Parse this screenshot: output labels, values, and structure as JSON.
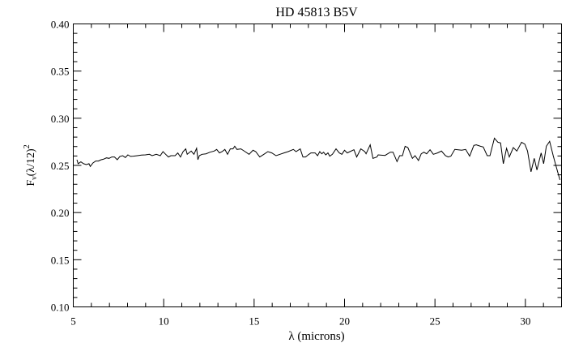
{
  "chart_data": {
    "type": "line",
    "title": "HD 45813 B5V",
    "xlabel": "λ (microns)",
    "ylabel": {
      "base": "F",
      "sub": "ν",
      "mid": "(λ/12)",
      "sup": "2"
    },
    "xlim": [
      5,
      32
    ],
    "ylim": [
      0.1,
      0.4
    ],
    "xticks": [
      5,
      10,
      15,
      20,
      25,
      30
    ],
    "xtick_labels": [
      "5",
      "10",
      "15",
      "20",
      "25",
      "30"
    ],
    "yticks": [
      0.1,
      0.15,
      0.2,
      0.25,
      0.3,
      0.35,
      0.4
    ],
    "ytick_labels": [
      "0.10",
      "0.15",
      "0.20",
      "0.25",
      "0.30",
      "0.35",
      "0.40"
    ],
    "x_minor_step": 1,
    "y_minor_step": 0.01,
    "grid": false,
    "line_color": "#000000",
    "series": [
      {
        "x": [
          5.2,
          5.27,
          5.42,
          5.57,
          5.72,
          5.87,
          5.94,
          6.09,
          6.24,
          6.39,
          6.54,
          6.68,
          6.83,
          6.98,
          7.13,
          7.28,
          7.43,
          7.58,
          7.73,
          7.88,
          8.02,
          8.17,
          8.32,
          8.54,
          8.77,
          8.99,
          9.21,
          9.36,
          9.59,
          9.81,
          9.96,
          10.11,
          10.26,
          10.4,
          10.63,
          10.78,
          10.93,
          11.07,
          11.22,
          11.3,
          11.52,
          11.67,
          11.82,
          11.89,
          11.97,
          12.12,
          12.34,
          12.56,
          12.79,
          12.93,
          13.08,
          13.23,
          13.38,
          13.53,
          13.68,
          13.83,
          13.93,
          14.05,
          14.27,
          14.5,
          14.72,
          14.94,
          15.09,
          15.31,
          15.54,
          15.76,
          15.98,
          16.21,
          16.43,
          16.65,
          16.88,
          17.17,
          17.32,
          17.55,
          17.7,
          17.84,
          17.99,
          18.14,
          18.37,
          18.51,
          18.63,
          18.74,
          18.84,
          18.96,
          19.08,
          19.18,
          19.33,
          19.53,
          19.71,
          19.85,
          20.0,
          20.15,
          20.3,
          20.52,
          20.67,
          20.9,
          21.12,
          21.19,
          21.42,
          21.57,
          21.79,
          21.86,
          22.24,
          22.53,
          22.68,
          22.9,
          23.05,
          23.2,
          23.35,
          23.5,
          23.75,
          23.9,
          24.09,
          24.24,
          24.39,
          24.54,
          24.73,
          24.91,
          25.14,
          25.36,
          25.58,
          25.73,
          25.88,
          26.1,
          26.48,
          26.7,
          26.92,
          27.15,
          27.29,
          27.52,
          27.67,
          27.89,
          28.04,
          28.29,
          28.48,
          28.63,
          28.78,
          28.96,
          29.11,
          29.33,
          29.53,
          29.79,
          29.97,
          30.12,
          30.31,
          30.49,
          30.64,
          30.87,
          31.01,
          31.16,
          31.34,
          31.54,
          31.68,
          31.91
        ],
        "y": [
          0.256,
          0.2518,
          0.2538,
          0.2518,
          0.2509,
          0.2518,
          0.2489,
          0.2526,
          0.2546,
          0.2546,
          0.256,
          0.2566,
          0.258,
          0.2575,
          0.2589,
          0.2589,
          0.256,
          0.2595,
          0.2603,
          0.2583,
          0.2612,
          0.2595,
          0.2598,
          0.2603,
          0.2609,
          0.2612,
          0.2618,
          0.2603,
          0.2618,
          0.2603,
          0.2646,
          0.2618,
          0.2589,
          0.2603,
          0.2603,
          0.2632,
          0.2589,
          0.2646,
          0.2675,
          0.2618,
          0.2652,
          0.2618,
          0.2681,
          0.256,
          0.2603,
          0.2618,
          0.2623,
          0.264,
          0.2652,
          0.2669,
          0.2632,
          0.2646,
          0.2669,
          0.2618,
          0.2675,
          0.2675,
          0.2703,
          0.2669,
          0.2675,
          0.2646,
          0.2618,
          0.2661,
          0.2646,
          0.2589,
          0.2618,
          0.2646,
          0.2632,
          0.2603,
          0.2618,
          0.2632,
          0.2646,
          0.2669,
          0.2646,
          0.2675,
          0.2589,
          0.2589,
          0.2612,
          0.2632,
          0.2632,
          0.2603,
          0.2646,
          0.2623,
          0.264,
          0.2612,
          0.2632,
          0.2598,
          0.2618,
          0.2675,
          0.2632,
          0.2618,
          0.2661,
          0.2632,
          0.2646,
          0.2666,
          0.2589,
          0.2675,
          0.2646,
          0.2623,
          0.2718,
          0.2575,
          0.2589,
          0.2612,
          0.2606,
          0.264,
          0.264,
          0.254,
          0.2603,
          0.2603,
          0.2703,
          0.2689,
          0.2575,
          0.2603,
          0.2552,
          0.2623,
          0.264,
          0.2623,
          0.2666,
          0.2618,
          0.2632,
          0.2652,
          0.2603,
          0.2589,
          0.2598,
          0.2669,
          0.2661,
          0.2669,
          0.2598,
          0.2712,
          0.2718,
          0.2703,
          0.2695,
          0.2603,
          0.2603,
          0.2789,
          0.2746,
          0.2738,
          0.2518,
          0.2681,
          0.2589,
          0.2689,
          0.2652,
          0.2746,
          0.2725,
          0.2652,
          0.2432,
          0.2575,
          0.2452,
          0.2632,
          0.2518,
          0.2703,
          0.2755,
          0.2603,
          0.2503,
          0.2346
        ]
      }
    ]
  }
}
